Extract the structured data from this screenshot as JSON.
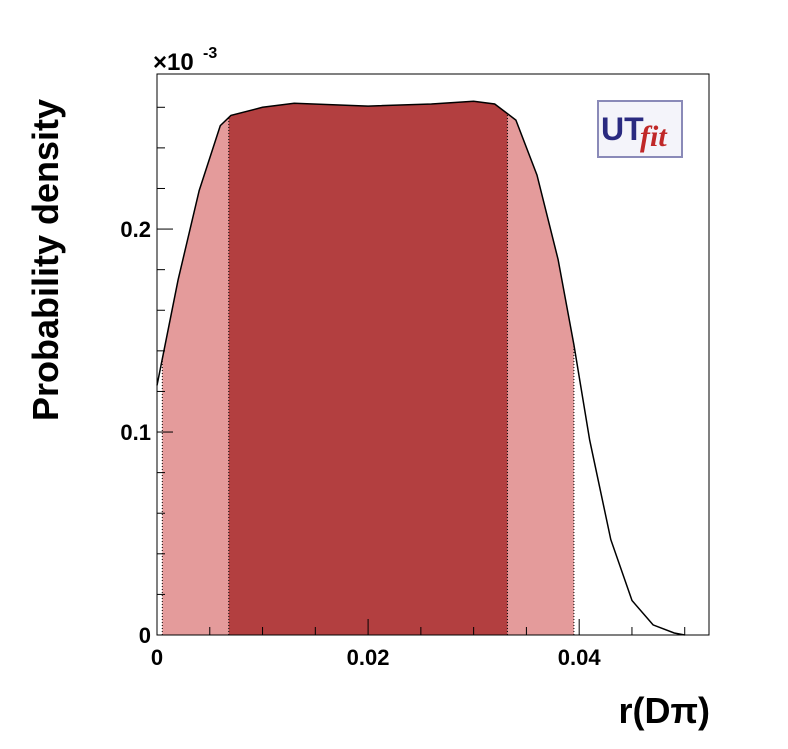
{
  "chart_data": {
    "type": "line",
    "ylabel": "Probability density",
    "xlabel": "r(Dπ)",
    "y_scale_label": {
      "base": "×10",
      "exponent": "-3"
    },
    "logo": {
      "first": "UT",
      "second": "fit"
    },
    "x": [
      0,
      0.002,
      0.004,
      0.006,
      0.007,
      0.01,
      0.013,
      0.02,
      0.026,
      0.03,
      0.032,
      0.034,
      0.036,
      0.038,
      0.0395,
      0.041,
      0.043,
      0.045,
      0.047,
      0.049,
      0.05
    ],
    "y": [
      0.123,
      0.175,
      0.219,
      0.251,
      0.256,
      0.26,
      0.262,
      0.2606,
      0.2616,
      0.263,
      0.2616,
      0.2537,
      0.2266,
      0.185,
      0.143,
      0.096,
      0.047,
      0.017,
      0.005,
      0.001,
      0
    ],
    "color": "#000000",
    "bands": [
      {
        "color": "#e49b9b",
        "range": [
          0.0005,
          0.0395
        ]
      },
      {
        "color": "#b33f40",
        "range": [
          0.0068,
          0.0332
        ]
      }
    ],
    "xlim": [
      0,
      0.0523
    ],
    "ylim": [
      0,
      0.2764
    ],
    "xticks": [
      0,
      0.02,
      0.04
    ],
    "yticks": [
      0,
      0.1,
      0.2
    ],
    "xminorticks": [
      0.005,
      0.01,
      0.015,
      0.025,
      0.03,
      0.035,
      0.045,
      0.05
    ],
    "yminorticks": [
      0.02,
      0.04,
      0.06,
      0.08,
      0.12,
      0.14,
      0.16,
      0.18,
      0.22,
      0.24,
      0.26
    ]
  }
}
